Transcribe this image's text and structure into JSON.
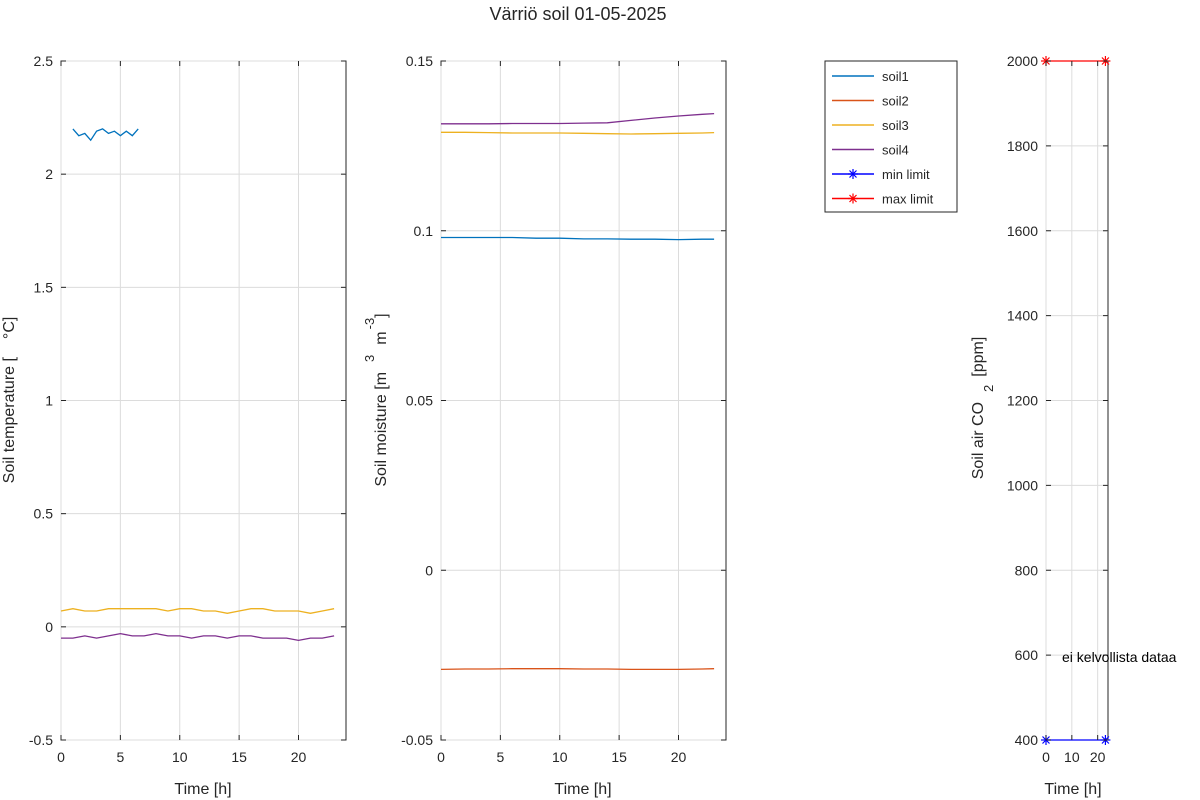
{
  "figure_title": "Värriö soil 01-05-2025",
  "chart_data": [
    {
      "type": "line",
      "id": "temperature",
      "xlabel": "Time [h]",
      "ylabel": "Soil temperature [",
      "ylabel_unit": "°C]",
      "xlim": [
        0,
        24
      ],
      "ylim": [
        -0.5,
        2.5
      ],
      "xticks": [
        0,
        5,
        10,
        15,
        20
      ],
      "yticks": [
        -0.5,
        0,
        0.5,
        1,
        1.5,
        2,
        2.5
      ],
      "ytick_labels": [
        "-0.5",
        "0",
        "0.5",
        "1",
        "1.5",
        "2",
        "2.5"
      ],
      "grid": true,
      "series": [
        {
          "name": "soil1",
          "color": "#0072BD",
          "x": [
            1.0,
            1.5,
            2.0,
            2.5,
            3.0,
            3.5,
            4.0,
            4.5,
            5.0,
            5.5,
            6.0,
            6.5
          ],
          "y": [
            2.2,
            2.17,
            2.18,
            2.15,
            2.19,
            2.2,
            2.18,
            2.19,
            2.17,
            2.19,
            2.17,
            2.2
          ]
        },
        {
          "name": "soil3",
          "color": "#EDB120",
          "x": [
            0,
            1,
            2,
            3,
            4,
            5,
            6,
            7,
            8,
            9,
            10,
            11,
            12,
            13,
            14,
            15,
            16,
            17,
            18,
            19,
            20,
            21,
            22,
            23
          ],
          "y": [
            0.07,
            0.08,
            0.07,
            0.07,
            0.08,
            0.08,
            0.08,
            0.08,
            0.08,
            0.07,
            0.08,
            0.08,
            0.07,
            0.07,
            0.06,
            0.07,
            0.08,
            0.08,
            0.07,
            0.07,
            0.07,
            0.06,
            0.07,
            0.08
          ]
        },
        {
          "name": "soil4",
          "color": "#7E2F8E",
          "x": [
            0,
            1,
            2,
            3,
            4,
            5,
            6,
            7,
            8,
            9,
            10,
            11,
            12,
            13,
            14,
            15,
            16,
            17,
            18,
            19,
            20,
            21,
            22,
            23
          ],
          "y": [
            -0.05,
            -0.05,
            -0.04,
            -0.05,
            -0.04,
            -0.03,
            -0.04,
            -0.04,
            -0.03,
            -0.04,
            -0.04,
            -0.05,
            -0.04,
            -0.04,
            -0.05,
            -0.04,
            -0.04,
            -0.05,
            -0.05,
            -0.05,
            -0.06,
            -0.05,
            -0.05,
            -0.04
          ]
        }
      ]
    },
    {
      "type": "line",
      "id": "moisture",
      "xlabel": "Time [h]",
      "ylabel": "Soil moisture [m",
      "ylabel_sup1": "3",
      "ylabel_mid": "m",
      "ylabel_sup2": "-3",
      "ylabel_end": "]",
      "xlim": [
        0,
        24
      ],
      "ylim": [
        -0.05,
        0.15
      ],
      "xticks": [
        0,
        5,
        10,
        15,
        20
      ],
      "yticks": [
        -0.05,
        0,
        0.05,
        0.1,
        0.15
      ],
      "ytick_labels": [
        "-0.05",
        "0",
        "0.05",
        "0.1",
        "0.15"
      ],
      "grid": true,
      "series": [
        {
          "name": "soil1",
          "color": "#0072BD",
          "x": [
            0,
            2,
            4,
            6,
            8,
            10,
            12,
            14,
            16,
            18,
            20,
            22,
            23
          ],
          "y": [
            0.098,
            0.098,
            0.098,
            0.098,
            0.0978,
            0.0978,
            0.0976,
            0.0976,
            0.0975,
            0.0975,
            0.0974,
            0.0975,
            0.0975
          ]
        },
        {
          "name": "soil2",
          "color": "#D95319",
          "x": [
            0,
            2,
            4,
            6,
            8,
            10,
            12,
            14,
            16,
            18,
            20,
            22,
            23
          ],
          "y": [
            -0.0292,
            -0.0291,
            -0.0291,
            -0.029,
            -0.029,
            -0.029,
            -0.0291,
            -0.0291,
            -0.0292,
            -0.0292,
            -0.0292,
            -0.0291,
            -0.029
          ]
        },
        {
          "name": "soil3",
          "color": "#EDB120",
          "x": [
            0,
            2,
            4,
            6,
            8,
            10,
            12,
            14,
            16,
            18,
            20,
            22,
            23
          ],
          "y": [
            0.129,
            0.129,
            0.1289,
            0.1288,
            0.1288,
            0.1288,
            0.1287,
            0.1286,
            0.1285,
            0.1286,
            0.1287,
            0.1288,
            0.1289
          ]
        },
        {
          "name": "soil4",
          "color": "#7E2F8E",
          "x": [
            0,
            2,
            4,
            6,
            8,
            10,
            12,
            14,
            16,
            18,
            20,
            22,
            23
          ],
          "y": [
            0.1315,
            0.1315,
            0.1315,
            0.1316,
            0.1316,
            0.1316,
            0.1317,
            0.1318,
            0.1325,
            0.1332,
            0.1338,
            0.1343,
            0.1345
          ]
        }
      ]
    },
    {
      "type": "line",
      "id": "co2",
      "xlabel": "Time [h]",
      "ylabel": "Soil air CO",
      "ylabel_sub": "2",
      "ylabel_end": "[ppm]",
      "xlim": [
        0,
        24
      ],
      "ylim": [
        400,
        2000
      ],
      "xticks": [
        0,
        10,
        20
      ],
      "yticks": [
        400,
        600,
        800,
        1000,
        1200,
        1400,
        1600,
        1800,
        2000
      ],
      "ytick_labels": [
        "400",
        "600",
        "800",
        "1000",
        "1200",
        "1400",
        "1600",
        "1800",
        "2000"
      ],
      "grid": true,
      "annotation": "ei kelvollista dataa",
      "series": [
        {
          "name": "min limit",
          "color": "#0000FF",
          "marker": "*",
          "x": [
            0,
            23
          ],
          "y": [
            400,
            400
          ]
        },
        {
          "name": "max limit",
          "color": "#FF0000",
          "marker": "*",
          "x": [
            0,
            23
          ],
          "y": [
            2000,
            2000
          ]
        }
      ]
    }
  ],
  "legend": {
    "position": "between-moisture-and-co2",
    "entries": [
      {
        "label": "soil1",
        "color": "#0072BD",
        "marker": ""
      },
      {
        "label": "soil2",
        "color": "#D95319",
        "marker": ""
      },
      {
        "label": "soil3",
        "color": "#EDB120",
        "marker": ""
      },
      {
        "label": "soil4",
        "color": "#7E2F8E",
        "marker": ""
      },
      {
        "label": "min limit",
        "color": "#0000FF",
        "marker": "*"
      },
      {
        "label": "max limit",
        "color": "#FF0000",
        "marker": "*"
      }
    ]
  }
}
